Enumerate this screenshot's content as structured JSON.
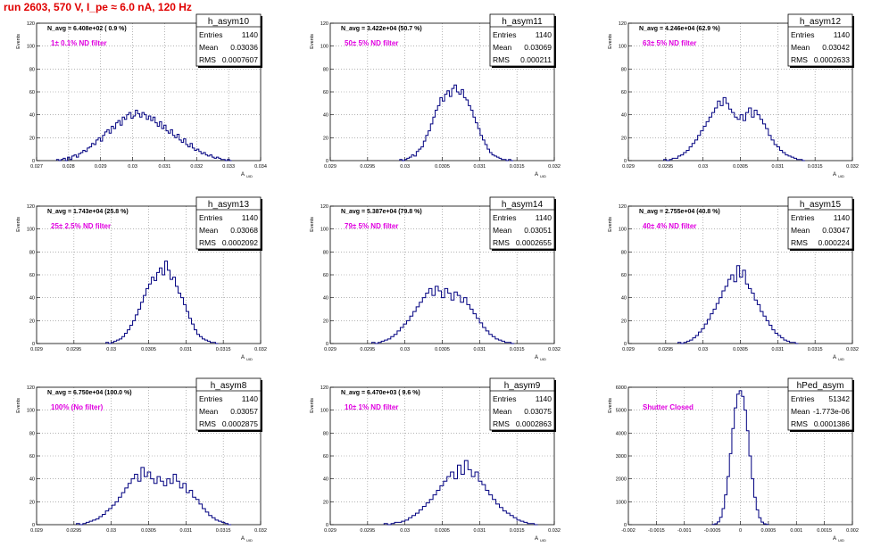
{
  "run_title": "run 2603,   570 V, I_pe ≈ 6.0 nA, 120 Hz",
  "axis": {
    "ylabel": "Events",
    "xlabel": "A",
    "xlabel_sub": "UID"
  },
  "stat_labels": {
    "entries": "Entries",
    "mean": "Mean",
    "rms": "RMS"
  },
  "colors": {
    "histogram": "#000080",
    "filter_text": "#e000e0",
    "title_text": "#e00000",
    "grid": "#888888"
  },
  "chart_data": [
    {
      "type": "histogram",
      "name": "h_asym10",
      "navg": "N_avg = 6.408e+02 ( 0.9 %)",
      "filter": "1± 0.1% ND filter",
      "stats": {
        "entries": "1140",
        "mean": "0.03036",
        "rms": "0.0007607"
      },
      "xlim": [
        0.027,
        0.034
      ],
      "ylim": [
        0,
        120
      ],
      "xticks": [
        "0.027",
        "0.028",
        "0.029",
        "0.03",
        "0.031",
        "0.032",
        "0.033",
        "0.034"
      ],
      "yticks": [
        "0",
        "20",
        "40",
        "60",
        "80",
        "100",
        "120"
      ],
      "mean": 0.03036,
      "sigma": 0.00076,
      "peak": 42,
      "bin_values": [
        1,
        0,
        1,
        2,
        0,
        3,
        1,
        4,
        5,
        3,
        6,
        7,
        9,
        8,
        11,
        12,
        15,
        14,
        18,
        20,
        17,
        22,
        25,
        27,
        24,
        30,
        28,
        33,
        35,
        31,
        38,
        36,
        40,
        42,
        37,
        39,
        44,
        41,
        38,
        42,
        40,
        36,
        39,
        35,
        38,
        33,
        30,
        34,
        28,
        31,
        26,
        24,
        27,
        22,
        20,
        23,
        18,
        16,
        19,
        14,
        12,
        15,
        11,
        9,
        10,
        8,
        6,
        7,
        5,
        4,
        5,
        3,
        2,
        3,
        2,
        1,
        1,
        0,
        1,
        0
      ]
    },
    {
      "type": "histogram",
      "name": "h_asym11",
      "navg": "N_avg = 3.422e+04 (50.7 %)",
      "filter": "50± 5% ND filter",
      "stats": {
        "entries": "1140",
        "mean": "0.03069",
        "rms": "0.000211"
      },
      "xlim": [
        0.029,
        0.032
      ],
      "ylim": [
        0,
        120
      ],
      "xticks": [
        "0.029",
        "0.0295",
        "0.03",
        "0.0305",
        "0.031",
        "0.0315",
        "0.032"
      ],
      "yticks": [
        "0",
        "20",
        "40",
        "60",
        "80",
        "100",
        "120"
      ],
      "mean": 0.03069,
      "sigma": 0.000211,
      "peak": 62,
      "bin_values": [
        1,
        0,
        1,
        2,
        3,
        5,
        4,
        8,
        10,
        12,
        17,
        22,
        26,
        32,
        38,
        44,
        48,
        55,
        52,
        58,
        61,
        56,
        63,
        66,
        60,
        58,
        62,
        55,
        53,
        48,
        44,
        38,
        33,
        28,
        22,
        18,
        14,
        10,
        7,
        5,
        4,
        3,
        2,
        1,
        1,
        0,
        1,
        0
      ]
    },
    {
      "type": "histogram",
      "name": "h_asym12",
      "navg": "N_avg = 4.246e+04 (62.9 %)",
      "filter": "63± 5% ND filter",
      "stats": {
        "entries": "1140",
        "mean": "0.03042",
        "rms": "0.0002633"
      },
      "xlim": [
        0.029,
        0.032
      ],
      "ylim": [
        0,
        120
      ],
      "xticks": [
        "0.029",
        "0.0295",
        "0.03",
        "0.0305",
        "0.031",
        "0.0315",
        "0.032"
      ],
      "yticks": [
        "0",
        "20",
        "40",
        "60",
        "80",
        "100",
        "120"
      ],
      "mean": 0.03042,
      "sigma": 0.000263,
      "peak": 50,
      "bin_values": [
        1,
        0,
        1,
        2,
        2,
        4,
        5,
        7,
        9,
        12,
        15,
        18,
        22,
        26,
        30,
        34,
        38,
        42,
        46,
        52,
        48,
        55,
        50,
        45,
        42,
        38,
        36,
        40,
        35,
        42,
        46,
        38,
        44,
        40,
        36,
        32,
        28,
        22,
        18,
        14,
        12,
        9,
        7,
        5,
        4,
        3,
        2,
        1,
        1,
        0
      ]
    },
    {
      "type": "histogram",
      "name": "h_asym13",
      "navg": "N_avg = 1.743e+04 (25.8 %)",
      "filter": "25± 2.5% ND filter",
      "stats": {
        "entries": "1140",
        "mean": "0.03068",
        "rms": "0.0002092"
      },
      "xlim": [
        0.029,
        0.032
      ],
      "ylim": [
        0,
        120
      ],
      "xticks": [
        "0.029",
        "0.0295",
        "0.03",
        "0.0305",
        "0.031",
        "0.0315",
        "0.032"
      ],
      "yticks": [
        "0",
        "20",
        "40",
        "60",
        "80",
        "100",
        "120"
      ],
      "mean": 0.03068,
      "sigma": 0.000209,
      "peak": 66,
      "bin_values": [
        1,
        0,
        1,
        2,
        3,
        4,
        6,
        9,
        12,
        16,
        20,
        25,
        30,
        36,
        42,
        48,
        52,
        58,
        55,
        62,
        66,
        60,
        72,
        64,
        56,
        58,
        50,
        44,
        40,
        34,
        28,
        22,
        17,
        12,
        8,
        6,
        4,
        3,
        2,
        1,
        1,
        0
      ]
    },
    {
      "type": "histogram",
      "name": "h_asym14",
      "navg": "N_avg = 5.387e+04 (79.8 %)",
      "filter": "79± 5% ND filter",
      "stats": {
        "entries": "1140",
        "mean": "0.03051",
        "rms": "0.0002655"
      },
      "xlim": [
        0.029,
        0.032
      ],
      "ylim": [
        0,
        120
      ],
      "xticks": [
        "0.029",
        "0.0295",
        "0.03",
        "0.0305",
        "0.031",
        "0.0315",
        "0.032"
      ],
      "yticks": [
        "0",
        "20",
        "40",
        "60",
        "80",
        "100",
        "120"
      ],
      "mean": 0.03051,
      "sigma": 0.000265,
      "peak": 48,
      "bin_values": [
        1,
        0,
        1,
        2,
        3,
        4,
        6,
        8,
        11,
        14,
        17,
        20,
        24,
        28,
        32,
        36,
        40,
        44,
        48,
        42,
        50,
        46,
        40,
        48,
        44,
        38,
        45,
        42,
        36,
        40,
        34,
        30,
        26,
        22,
        18,
        14,
        11,
        8,
        6,
        4,
        3,
        2,
        1,
        1,
        0
      ]
    },
    {
      "type": "histogram",
      "name": "h_asym15",
      "navg": "N_avg = 2.755e+04 (40.8 %)",
      "filter": "40± 4% ND filter",
      "stats": {
        "entries": "1140",
        "mean": "0.03047",
        "rms": "0.000224"
      },
      "xlim": [
        0.029,
        0.032
      ],
      "ylim": [
        0,
        120
      ],
      "xticks": [
        "0.029",
        "0.0295",
        "0.03",
        "0.0305",
        "0.031",
        "0.0315",
        "0.032"
      ],
      "yticks": [
        "0",
        "20",
        "40",
        "60",
        "80",
        "100",
        "120"
      ],
      "mean": 0.03047,
      "sigma": 0.000224,
      "peak": 62,
      "bin_values": [
        1,
        0,
        1,
        2,
        3,
        5,
        7,
        10,
        13,
        17,
        21,
        26,
        30,
        35,
        40,
        46,
        50,
        56,
        60,
        54,
        68,
        58,
        64,
        52,
        48,
        44,
        38,
        34,
        28,
        24,
        20,
        16,
        12,
        9,
        7,
        5,
        3,
        2,
        1,
        1,
        0
      ]
    },
    {
      "type": "histogram",
      "name": "h_asym8",
      "navg": "N_avg = 6.750e+04 (100.0 %)",
      "filter": "100% (No filter)",
      "stats": {
        "entries": "1140",
        "mean": "0.03057",
        "rms": "0.0002875"
      },
      "xlim": [
        0.029,
        0.032
      ],
      "ylim": [
        0,
        120
      ],
      "xticks": [
        "0.029",
        "0.0295",
        "0.03",
        "0.0305",
        "0.031",
        "0.0315",
        "0.032"
      ],
      "yticks": [
        "0",
        "20",
        "40",
        "60",
        "80",
        "100",
        "120"
      ],
      "mean": 0.03057,
      "sigma": 0.000288,
      "peak": 48,
      "bin_values": [
        1,
        0,
        1,
        2,
        3,
        4,
        5,
        7,
        9,
        12,
        14,
        17,
        20,
        24,
        28,
        32,
        36,
        40,
        44,
        38,
        50,
        42,
        46,
        40,
        36,
        42,
        38,
        34,
        40,
        36,
        44,
        38,
        32,
        36,
        28,
        30,
        24,
        22,
        18,
        14,
        11,
        8,
        6,
        4,
        3,
        2,
        1,
        0
      ]
    },
    {
      "type": "histogram",
      "name": "h_asym9",
      "navg": "N_avg = 6.470e+03 ( 9.6 %)",
      "filter": "10± 1% ND filter",
      "stats": {
        "entries": "1140",
        "mean": "0.03075",
        "rms": "0.0002863"
      },
      "xlim": [
        0.029,
        0.032
      ],
      "ylim": [
        0,
        120
      ],
      "xticks": [
        "0.029",
        "0.0295",
        "0.03",
        "0.0305",
        "0.031",
        "0.0315",
        "0.032"
      ],
      "yticks": [
        "0",
        "20",
        "40",
        "60",
        "80",
        "100",
        "120"
      ],
      "mean": 0.03075,
      "sigma": 0.000286,
      "peak": 48,
      "bin_values": [
        1,
        0,
        1,
        2,
        2,
        3,
        4,
        6,
        8,
        10,
        13,
        16,
        19,
        22,
        26,
        30,
        34,
        38,
        42,
        46,
        40,
        52,
        44,
        56,
        48,
        42,
        46,
        38,
        35,
        30,
        26,
        22,
        18,
        15,
        12,
        10,
        8,
        6,
        4,
        3,
        2,
        1,
        1,
        0
      ]
    },
    {
      "type": "histogram",
      "name": "hPed_asym",
      "navg": "",
      "filter": "Shutter Closed",
      "stats": {
        "entries": "51342",
        "mean": "-1.773e-06",
        "rms": "0.0001386"
      },
      "xlim": [
        -0.002,
        0.002
      ],
      "ylim": [
        0,
        6000
      ],
      "xticks": [
        "-0.002",
        "-0.0015",
        "-0.001",
        "-0.0005",
        "0",
        "0.0005",
        "0.001",
        "0.0015",
        "0.002"
      ],
      "yticks": [
        "0",
        "1000",
        "2000",
        "3000",
        "4000",
        "5000",
        "6000"
      ],
      "mean": 0.0,
      "sigma": 0.000139,
      "peak": 5800,
      "bin_values": [
        10,
        40,
        120,
        320,
        700,
        1300,
        2100,
        3100,
        4200,
        5100,
        5700,
        5850,
        5600,
        5000,
        4100,
        3000,
        2000,
        1200,
        650,
        300,
        110,
        40,
        10
      ]
    }
  ]
}
